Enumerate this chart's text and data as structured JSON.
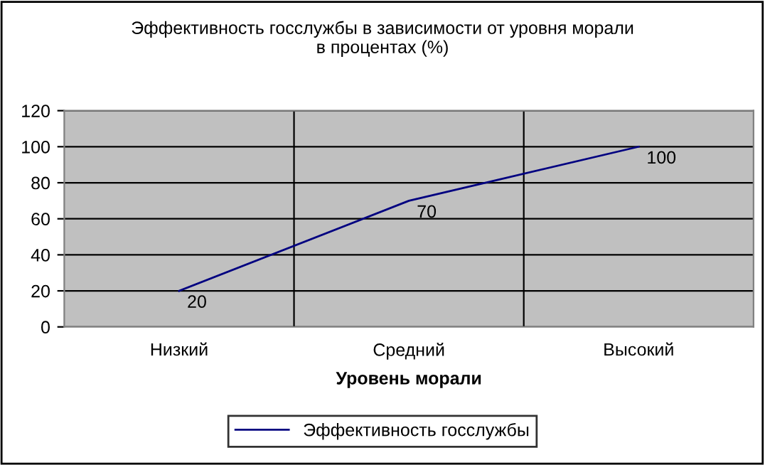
{
  "chart_data": {
    "type": "line",
    "title": "Эффективность госслужбы в зависимости от уровня морали\nв процентах (%)",
    "xlabel": "Уровень морали",
    "categories": [
      "Низкий",
      "Средний",
      "Высокий"
    ],
    "series": [
      {
        "name": "Эффективность госслужбы",
        "color": "#000080",
        "values": [
          20,
          70,
          100
        ]
      }
    ],
    "ylim": [
      0,
      120
    ],
    "yticks": [
      0,
      20,
      40,
      60,
      80,
      100,
      120
    ],
    "grid": true,
    "legend": "bottom",
    "data_labels": true,
    "marker": "none",
    "line_style": "solid"
  }
}
